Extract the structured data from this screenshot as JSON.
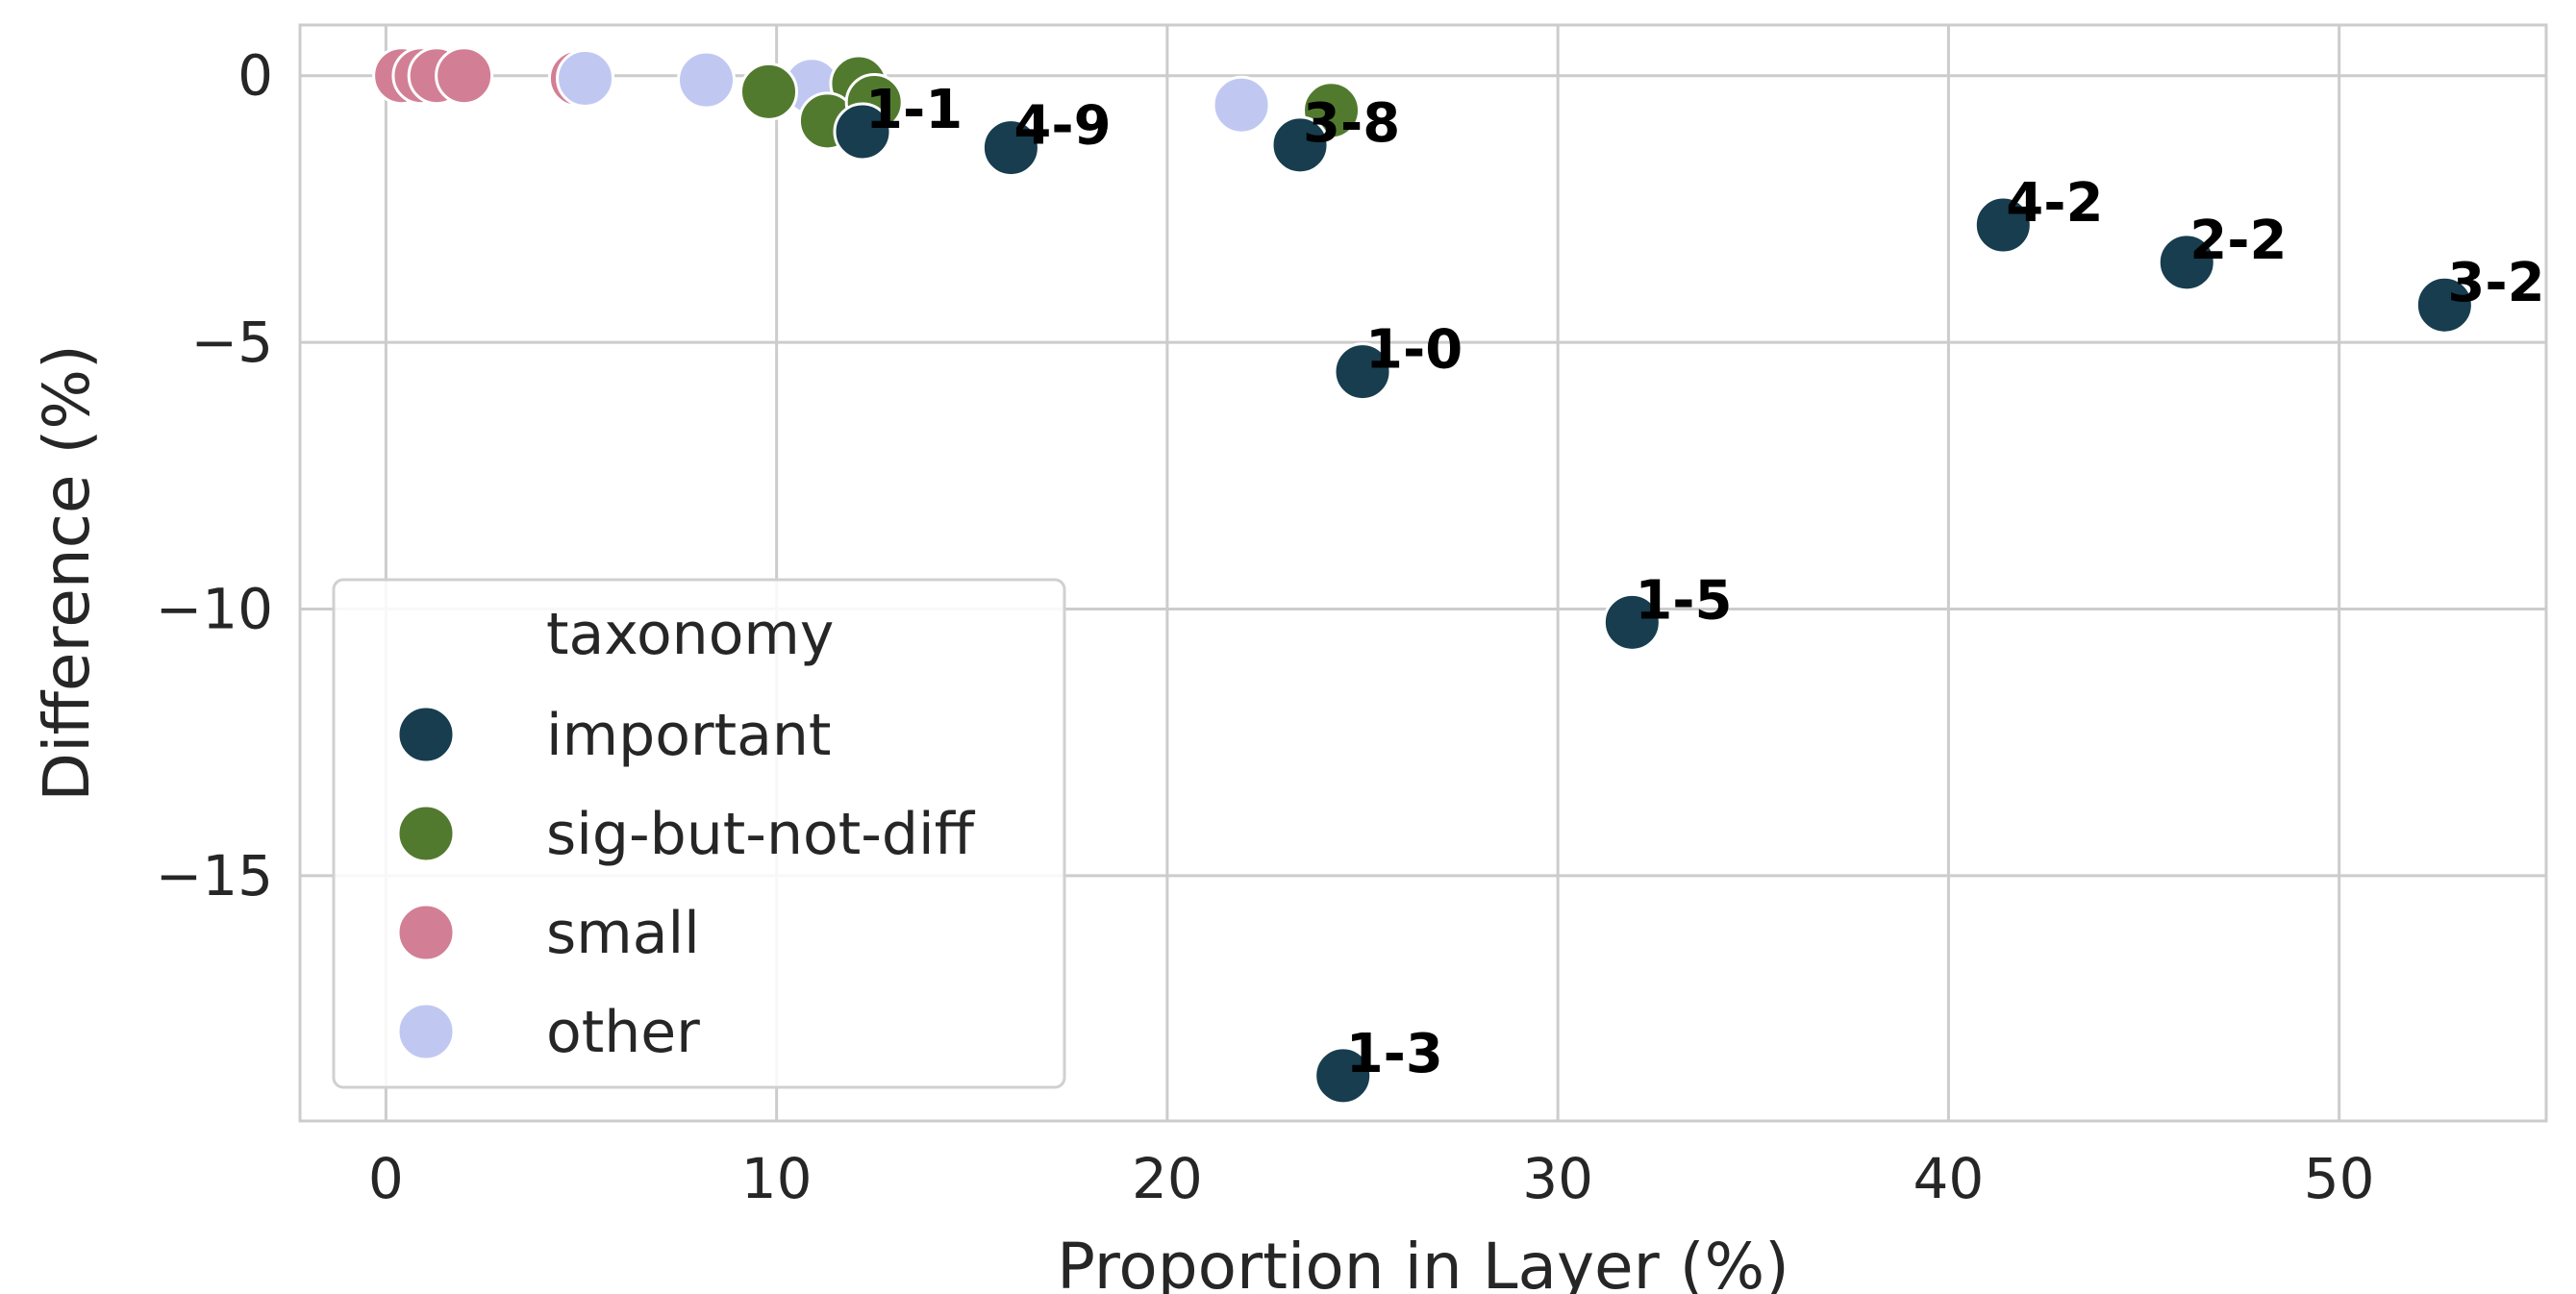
{
  "chart_data": {
    "type": "scatter",
    "title": "",
    "xlabel": "Proportion in Layer (%)",
    "ylabel": "Difference (%)",
    "xlim": [
      -2.2,
      55.3
    ],
    "ylim": [
      -19.6,
      0.95
    ],
    "xticks": [
      0,
      10,
      20,
      30,
      40,
      50
    ],
    "yticks": [
      0,
      -5,
      -10,
      -15
    ],
    "ytick_labels": [
      "0",
      "−5",
      "−10",
      "−15"
    ],
    "grid": true,
    "legend": {
      "title": "taxonomy",
      "position": "lower-left",
      "entries": [
        "important",
        "sig-but-not-diff",
        "small",
        "other"
      ]
    },
    "colors": {
      "important": "#173d4f",
      "sig-but-not-diff": "#527a2f",
      "small": "#d27f95",
      "other": "#c0c8f2"
    },
    "series": [
      {
        "name": "small",
        "points": [
          {
            "x": 0.4,
            "y": 0.0
          },
          {
            "x": 0.9,
            "y": 0.0
          },
          {
            "x": 1.3,
            "y": 0.0
          },
          {
            "x": 2.0,
            "y": 0.0
          },
          {
            "x": 4.9,
            "y": -0.05
          }
        ]
      },
      {
        "name": "other",
        "points": [
          {
            "x": 5.1,
            "y": -0.05
          },
          {
            "x": 8.2,
            "y": -0.08
          },
          {
            "x": 10.9,
            "y": -0.2
          },
          {
            "x": 21.9,
            "y": -0.55
          }
        ]
      },
      {
        "name": "sig-but-not-diff",
        "points": [
          {
            "x": 9.8,
            "y": -0.3
          },
          {
            "x": 12.1,
            "y": -0.15
          },
          {
            "x": 11.3,
            "y": -0.85
          },
          {
            "x": 12.5,
            "y": -0.5
          },
          {
            "x": 24.2,
            "y": -0.65
          }
        ]
      },
      {
        "name": "important",
        "points": [
          {
            "x": 12.2,
            "y": -1.05,
            "label": "1-1"
          },
          {
            "x": 16.0,
            "y": -1.35,
            "label": "4-9"
          },
          {
            "x": 23.4,
            "y": -1.3,
            "label": "3-8"
          },
          {
            "x": 25.0,
            "y": -5.55,
            "label": "1-0"
          },
          {
            "x": 31.9,
            "y": -10.25,
            "label": "1-5"
          },
          {
            "x": 24.5,
            "y": -18.75,
            "label": "1-3"
          },
          {
            "x": 41.4,
            "y": -2.8,
            "label": "4-2"
          },
          {
            "x": 46.1,
            "y": -3.5,
            "label": "2-2"
          },
          {
            "x": 52.7,
            "y": -4.3,
            "label": "3-2"
          }
        ]
      }
    ]
  }
}
